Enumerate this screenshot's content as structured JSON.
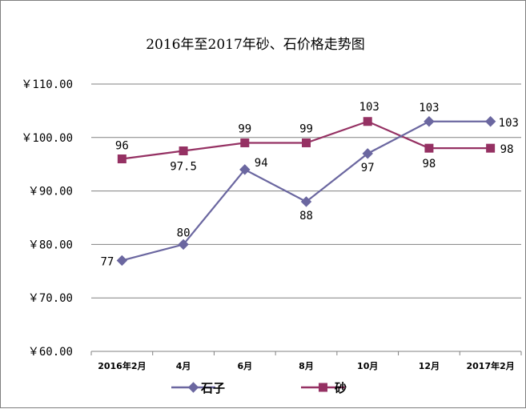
{
  "chart_data": {
    "type": "line",
    "title": "2016年至2017年砂、石价格走势图",
    "categories": [
      "2016年2月",
      "4月",
      "6月",
      "8月",
      "10月",
      "12月",
      "2017年2月"
    ],
    "ylim": [
      60,
      110
    ],
    "yticks": [
      60,
      70,
      80,
      90,
      100,
      110
    ],
    "ytick_labels": [
      "￥60.00",
      "￥70.00",
      "￥80.00",
      "￥90.00",
      "￥100.00",
      "￥110.00"
    ],
    "grid": true,
    "legend_position": "bottom",
    "series": [
      {
        "name": "石子",
        "values": [
          77,
          80,
          94,
          88,
          97,
          103,
          103
        ],
        "labels": [
          "77",
          "80",
          "94",
          "88",
          "97",
          "103",
          "103"
        ],
        "color": "#6b67a0",
        "marker": "diamond"
      },
      {
        "name": "砂",
        "values": [
          96,
          97.5,
          99,
          99,
          103,
          98,
          98
        ],
        "labels": [
          "96",
          "97.5",
          "99",
          "99",
          "103",
          "98",
          "98"
        ],
        "color": "#953163",
        "marker": "square"
      }
    ]
  }
}
